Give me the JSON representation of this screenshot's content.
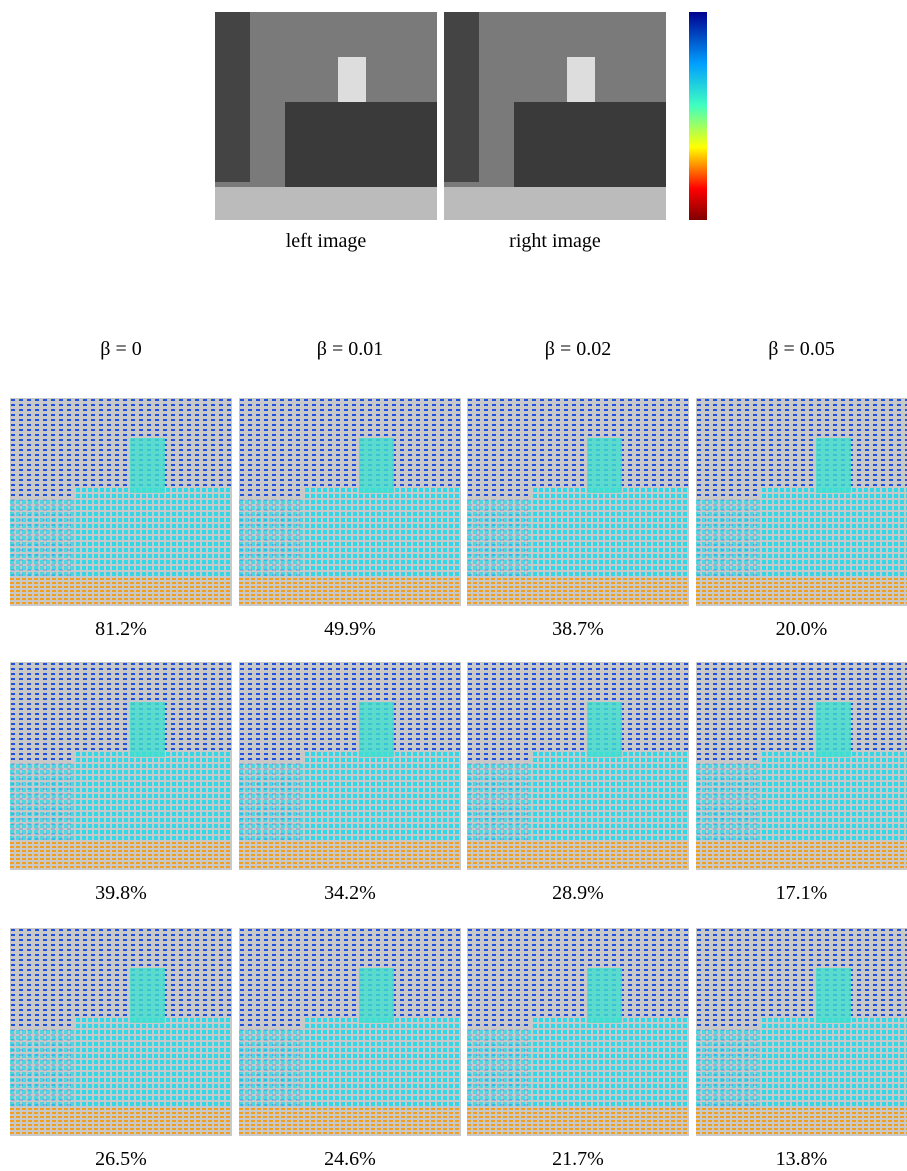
{
  "top_images": {
    "left_caption": "left image",
    "right_caption": "right image"
  },
  "columns": [
    "β = 0",
    "β = 0.01",
    "β = 0.02",
    "β = 0.05"
  ],
  "rows": [
    [
      "81.2%",
      "49.9%",
      "38.7%",
      "20.0%"
    ],
    [
      "39.8%",
      "34.2%",
      "28.9%",
      "17.1%"
    ],
    [
      "26.5%",
      "24.6%",
      "21.7%",
      "13.8%"
    ]
  ]
}
